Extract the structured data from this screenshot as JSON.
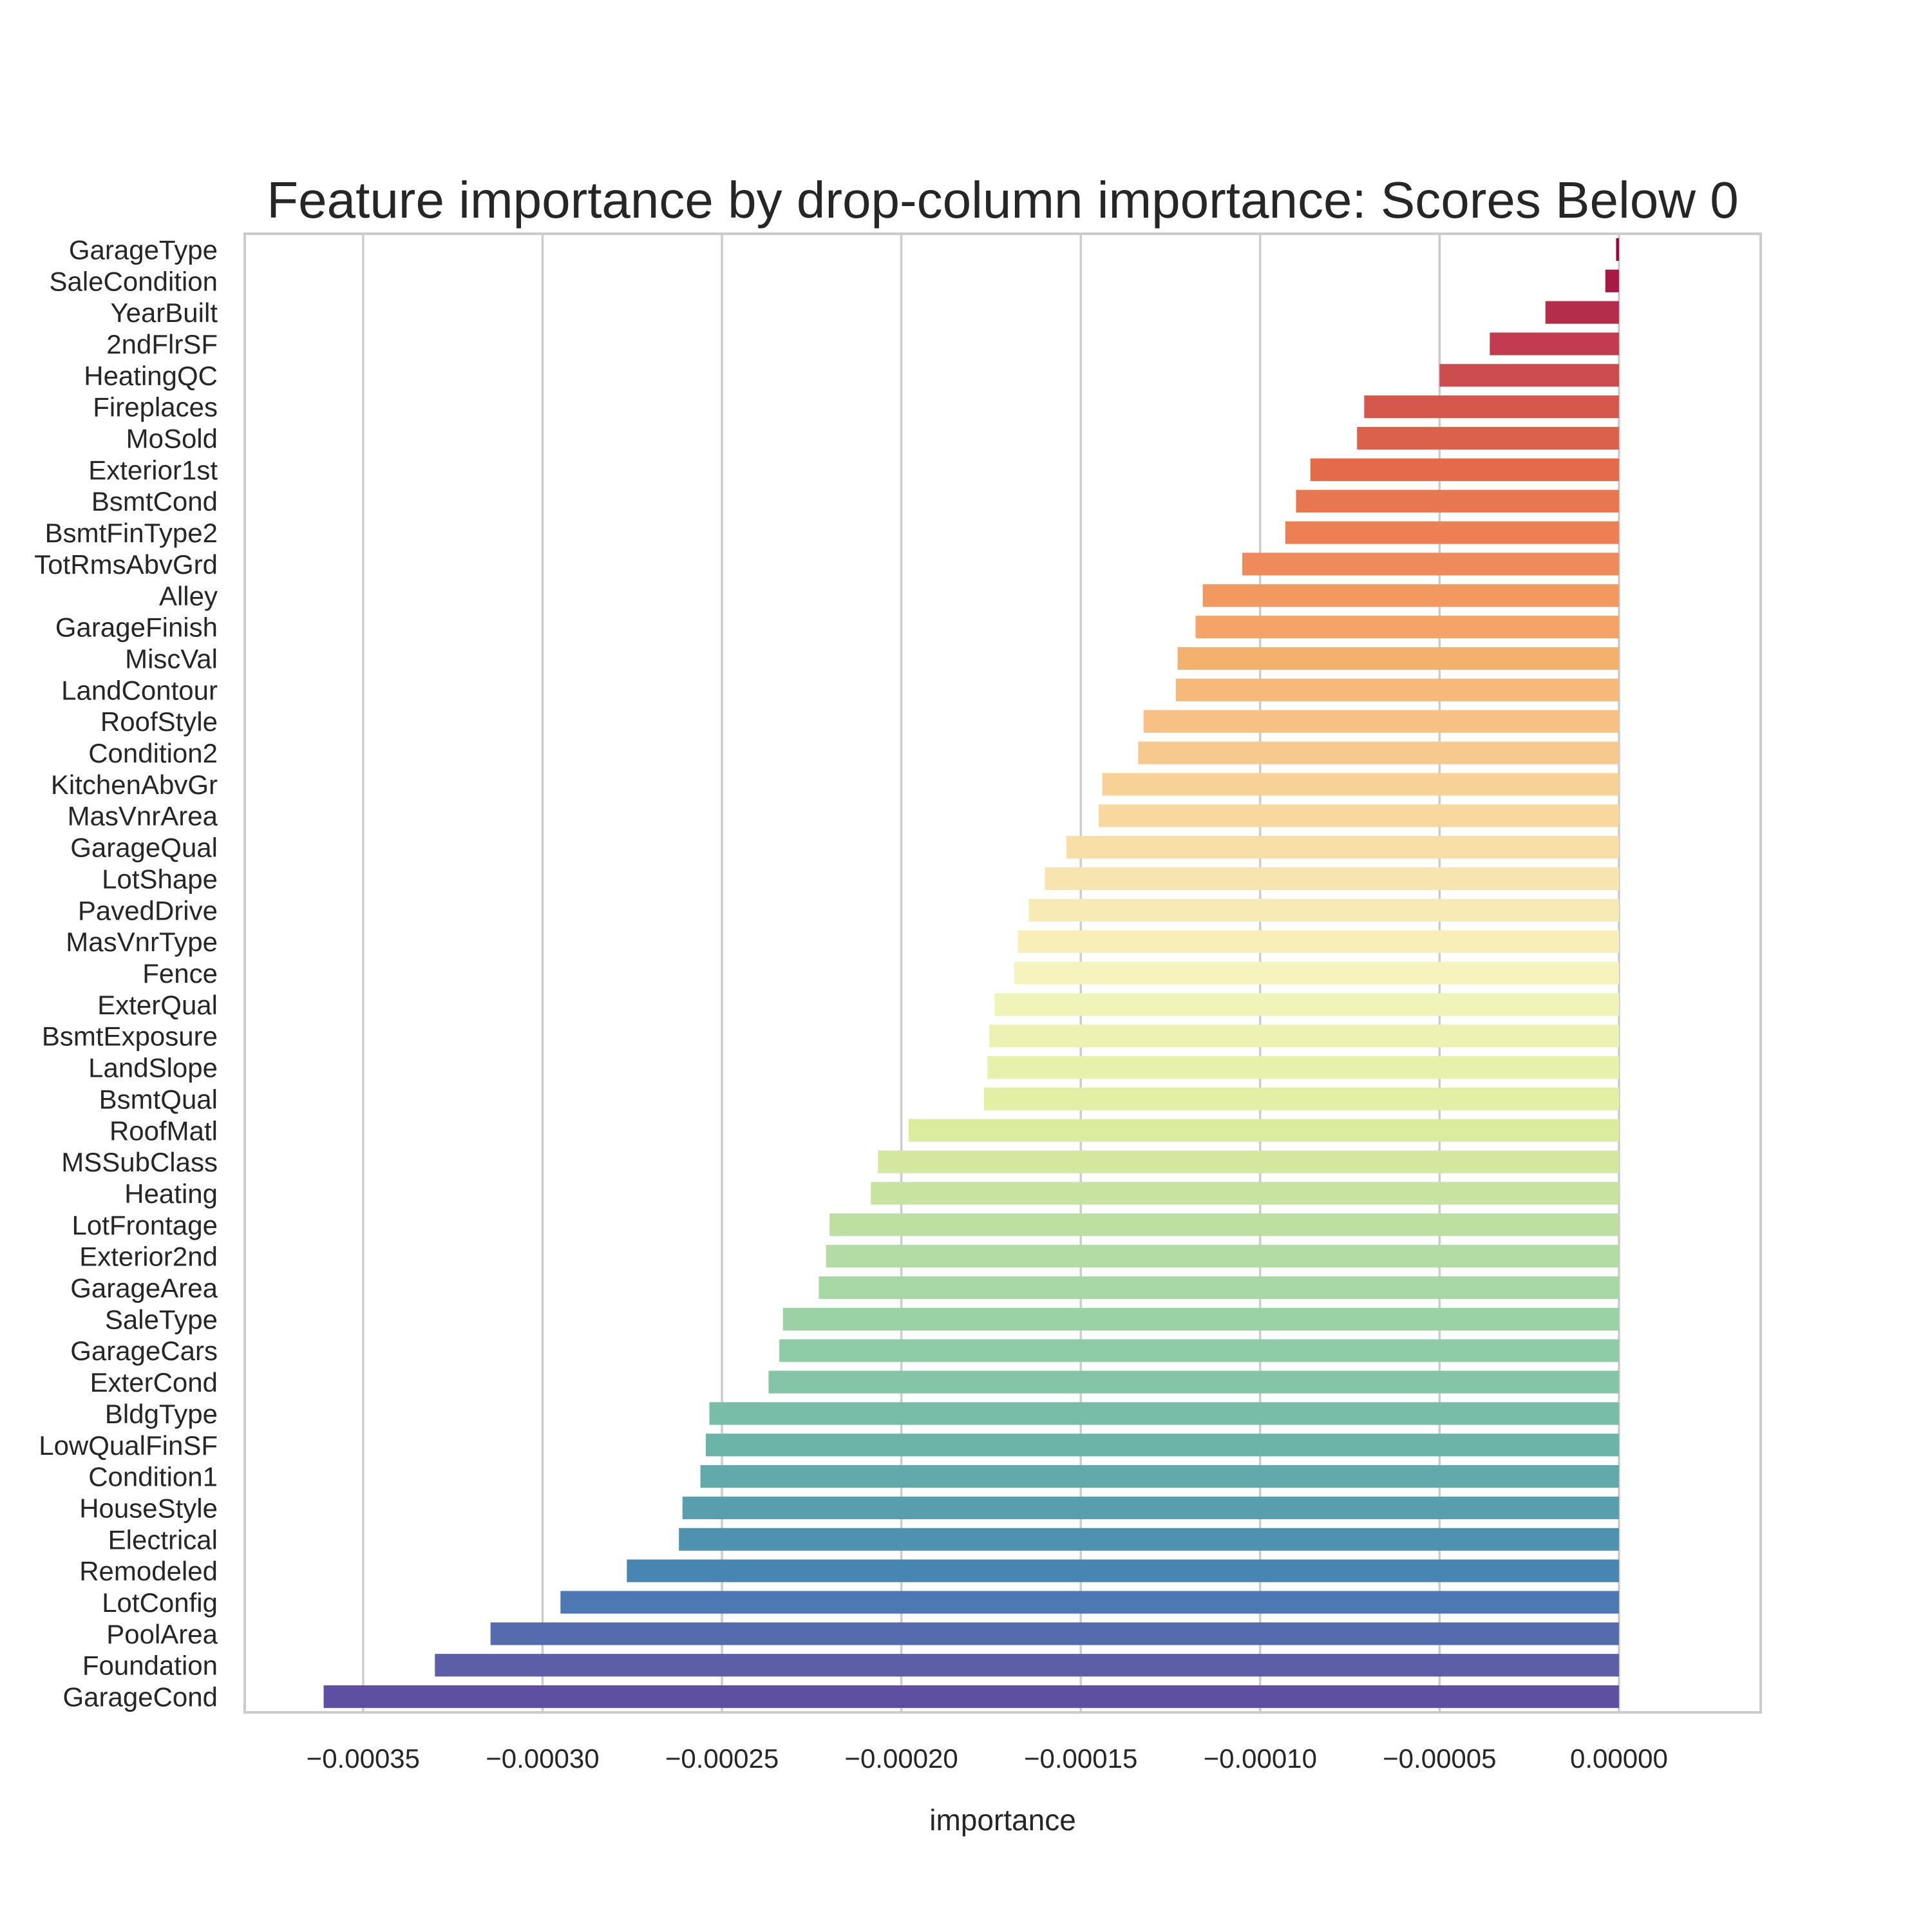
{
  "chart_data": {
    "type": "bar",
    "orientation": "horizontal",
    "title": "Feature importance by drop-column importance: Scores Below 0",
    "xlabel": "importance",
    "ylabel": "",
    "xlim": [
      -0.000383,
      3.95e-05
    ],
    "xticks": [
      -0.00035,
      -0.0003,
      -0.00025,
      -0.0002,
      -0.00015,
      -0.0001,
      -5e-05,
      0.0
    ],
    "xtick_labels": [
      "−0.00035",
      "−0.00030",
      "−0.00025",
      "−0.00020",
      "−0.00015",
      "−0.00010",
      "−0.00005",
      "0.00000"
    ],
    "grid": "vertical",
    "palette": "Spectral",
    "categories": [
      "GarageType",
      "SaleCondition",
      "YearBuilt",
      "2ndFlrSF",
      "HeatingQC",
      "Fireplaces",
      "MoSold",
      "Exterior1st",
      "BsmtCond",
      "BsmtFinType2",
      "TotRmsAbvGrd",
      "Alley",
      "GarageFinish",
      "MiscVal",
      "LandContour",
      "RoofStyle",
      "Condition2",
      "KitchenAbvGr",
      "MasVnrArea",
      "GarageQual",
      "LotShape",
      "PavedDrive",
      "MasVnrType",
      "Fence",
      "ExterQual",
      "BsmtExposure",
      "LandSlope",
      "BsmtQual",
      "RoofMatl",
      "MSSubClass",
      "Heating",
      "LotFrontage",
      "Exterior2nd",
      "GarageArea",
      "SaleType",
      "GarageCars",
      "ExterCond",
      "BldgType",
      "LowQualFinSF",
      "Condition1",
      "HouseStyle",
      "Electrical",
      "Remodeled",
      "LotConfig",
      "PoolArea",
      "Foundation",
      "GarageCond"
    ],
    "values": [
      -8e-07,
      -3.8e-06,
      -2.05e-05,
      -3.6e-05,
      -5e-05,
      -7.1e-05,
      -7.3e-05,
      -8.6e-05,
      -9e-05,
      -9.3e-05,
      -0.000105,
      -0.000116,
      -0.000118,
      -0.000123,
      -0.0001235,
      -0.0001325,
      -0.000134,
      -0.000144,
      -0.000145,
      -0.000154,
      -0.00016,
      -0.0001645,
      -0.0001675,
      -0.0001685,
      -0.000174,
      -0.0001755,
      -0.000176,
      -0.000177,
      -0.000198,
      -0.0002065,
      -0.0002085,
      -0.00022,
      -0.000221,
      -0.000223,
      -0.000233,
      -0.000234,
      -0.000237,
      -0.0002535,
      -0.0002545,
      -0.000256,
      -0.000261,
      -0.000262,
      -0.0002765,
      -0.000295,
      -0.0003145,
      -0.00033,
      -0.000361
    ],
    "colors": [
      "#9e0142",
      "#a61a45",
      "#b42d4a",
      "#c23b4e",
      "#cc4b4d",
      "#d5574c",
      "#dc614b",
      "#e36a4b",
      "#e8764e",
      "#ec8054",
      "#ef8b5a",
      "#f19961",
      "#f3a466",
      "#f4b06d",
      "#f6b97a",
      "#f7c185",
      "#f7c98f",
      "#f8d197",
      "#f8d89f",
      "#f8dea7",
      "#f8e4ae",
      "#f8eab4",
      "#f7eeb8",
      "#f6f3bc",
      "#f1f4b8",
      "#edf2b2",
      "#e8f1ab",
      "#e2efa4",
      "#dcec9f",
      "#d3e79e",
      "#c8e39f",
      "#bde0a2",
      "#b2dca4",
      "#a6d7a5",
      "#9ad2a6",
      "#8ecca7",
      "#83c5a6",
      "#77bda7",
      "#6cb3a8",
      "#61a9aa",
      "#589eac",
      "#4f92af",
      "#4786b2",
      "#4d78b3",
      "#556bae",
      "#5c5fa8",
      "#5e4fa2"
    ]
  }
}
